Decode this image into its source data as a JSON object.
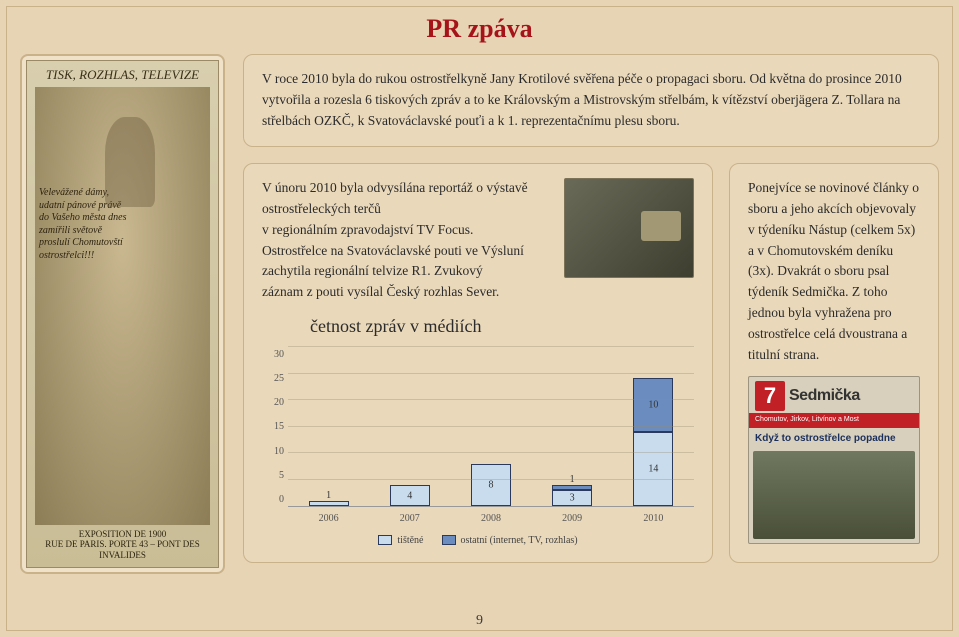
{
  "page": {
    "title": "PR zpáva",
    "number": "9",
    "bg_color": "#e7d4b5",
    "border_color": "#c9b28a",
    "title_color": "#a6141a"
  },
  "poster": {
    "header": "TISK, ROZHLAS, TELEVIZE",
    "side_text": "Velevážené dámy, udatní pánové právě do Vašeho města dnes zamířili světově proslulí Chomutovští ostrostřelci!!!",
    "footer_lines": [
      "EXPOSITION DE 1900",
      "RUE DE PARIS. PORTE 43 – PONT DES INVALIDES"
    ]
  },
  "intro_box": {
    "text": "V roce 2010 byla do rukou ostrostřelkyně Jany Krotilové svěřena péče o propagaci sboru. Od května do prosince 2010 vytvořila a rozesla 6 tiskových zpráv a to ke Královským a Mistrovským střelbám, k vítězství oberjägera Z. Tollara na střelbách OZKČ, k Svatováclavské pouťi a k 1. reprezentačnímu plesu sboru."
  },
  "middle_box": {
    "text_lines": [
      "V únoru 2010 byla odvysílána reportáž o výstavě ostrostřeleckých terčů",
      "v regionálním zpravodajství TV Focus.",
      "Ostrostřelce na Svatováclavské pouti ve Výsluní",
      "zachytila regionální telvize R1. Zvukový",
      "záznam z pouti vysílal Český rozhlas Sever."
    ]
  },
  "chart": {
    "title": "četnost zpráv v médiích",
    "type": "stacked-bar",
    "y_max": 30,
    "y_ticks": [
      0,
      5,
      10,
      15,
      20,
      25,
      30
    ],
    "categories": [
      "2006",
      "2007",
      "2008",
      "2009",
      "2010"
    ],
    "series": [
      {
        "name": "tištěné",
        "color": "#c8dcee",
        "values": [
          1,
          4,
          8,
          3,
          14
        ]
      },
      {
        "name": "ostatní (internet, TV, rozhlas)",
        "color": "#6b8cbf",
        "values": [
          0,
          0,
          0,
          1,
          10
        ]
      }
    ],
    "grid_color": "rgba(150,140,110,0.35)"
  },
  "right_box": {
    "text": "Ponejvíce se novinové články o sboru a jeho akcích objevovaly v týdeníku Nástup (celkem 5x) a v Chomutovském deníku (3x). Dvakrát o sboru psal týdeník Sedmička. Z toho jednou byla vyhražena pro ostrostřelce celá dvoustrana a titulní strana."
  },
  "newspaper": {
    "seven": "7",
    "name": "Sedmička",
    "subline": "Chomutov, Jirkov, Litvínov a Most",
    "headline": "Když to ostrostřelce popadne"
  }
}
